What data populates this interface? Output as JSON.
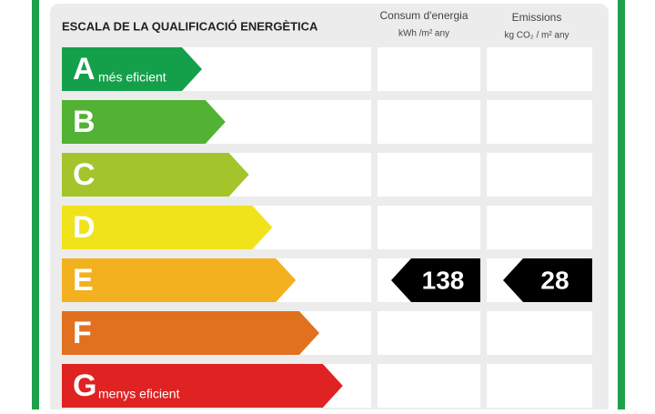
{
  "header": {
    "title": "ESCALA DE LA QUALIFICACIÓ ENERGÈTICA",
    "columns": [
      {
        "title": "Consum d'energia",
        "unit": "kWh /m² any"
      },
      {
        "title": "Emissions",
        "unit": "kg CO₂ / m² any"
      }
    ]
  },
  "rows": [
    {
      "letter": "A",
      "label": "més eficient",
      "color": "#14a04b"
    },
    {
      "letter": "B",
      "color": "#52b233"
    },
    {
      "letter": "C",
      "color": "#a3c52b"
    },
    {
      "letter": "D",
      "color": "#f0e31c"
    },
    {
      "letter": "E",
      "color": "#f3b01f",
      "energy": 138,
      "emissions": 28
    },
    {
      "letter": "F",
      "color": "#e2711f"
    },
    {
      "letter": "G",
      "label": "menys eficient",
      "color": "#df2222"
    }
  ]
}
